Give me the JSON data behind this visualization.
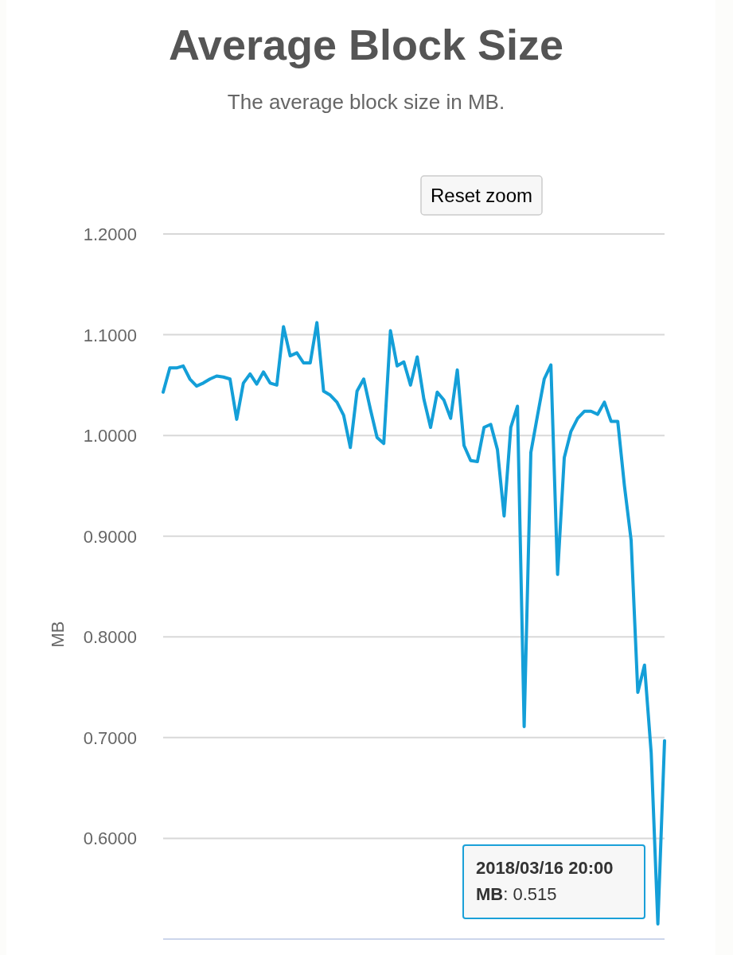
{
  "chart_data": {
    "type": "line",
    "title": "Average Block Size",
    "subtitle": "The average block size in MB.",
    "ylabel": "MB",
    "categories": [
      null,
      null,
      null,
      null,
      null,
      null,
      null,
      null,
      null,
      null,
      null,
      null,
      null,
      null,
      null,
      null,
      null,
      null,
      null,
      null,
      null,
      null,
      null,
      null,
      null,
      null,
      null,
      null,
      null,
      null,
      null,
      null,
      null,
      null,
      null,
      null,
      null,
      null,
      null,
      null,
      null,
      null,
      null,
      null,
      null,
      null,
      null,
      null,
      null,
      null,
      null,
      null,
      null,
      null,
      null,
      null,
      null,
      null,
      null,
      null,
      null,
      null,
      null,
      null,
      null,
      null,
      null,
      null,
      null,
      null,
      null,
      null,
      null,
      null,
      null,
      null
    ],
    "series": [
      {
        "color": "#149fd8",
        "values": [
          1.043,
          1.067,
          1.067,
          1.069,
          1.056,
          1.049,
          1.052,
          1.056,
          1.059,
          1.058,
          1.056,
          1.016,
          1.052,
          1.061,
          1.051,
          1.063,
          1.052,
          1.05,
          1.108,
          1.079,
          1.082,
          1.072,
          1.072,
          1.112,
          1.044,
          1.04,
          1.033,
          1.02,
          0.988,
          1.044,
          1.056,
          1.026,
          0.998,
          0.992,
          1.104,
          1.069,
          1.073,
          1.05,
          1.078,
          1.036,
          1.008,
          1.043,
          1.035,
          1.017,
          1.065,
          0.99,
          0.975,
          0.974,
          1.008,
          1.011,
          0.986,
          0.92,
          1.008,
          1.029,
          0.711,
          0.983,
          1.02,
          1.056,
          1.07,
          0.862,
          0.978,
          1.004,
          1.017,
          1.024,
          1.024,
          1.021,
          1.033,
          1.014,
          1.014,
          0.95,
          0.896,
          0.745,
          0.772,
          0.685,
          0.515,
          0.697
        ]
      }
    ],
    "ylim": [
      0.5,
      1.2
    ],
    "yticks": [
      {
        "value": 0.6,
        "label": "0.6000"
      },
      {
        "value": 0.7,
        "label": "0.7000"
      },
      {
        "value": 0.8,
        "label": "0.8000"
      },
      {
        "value": 0.9,
        "label": "0.9000"
      },
      {
        "value": 1.0,
        "label": "1.0000"
      },
      {
        "value": 1.1,
        "label": "1.1000"
      },
      {
        "value": 1.2,
        "label": "1.2000"
      }
    ],
    "grid": "y",
    "tick_labels": "y",
    "annotations": [
      "Reset zoom",
      "2018/03/16 20:00\nMB: 0.515"
    ]
  }
}
